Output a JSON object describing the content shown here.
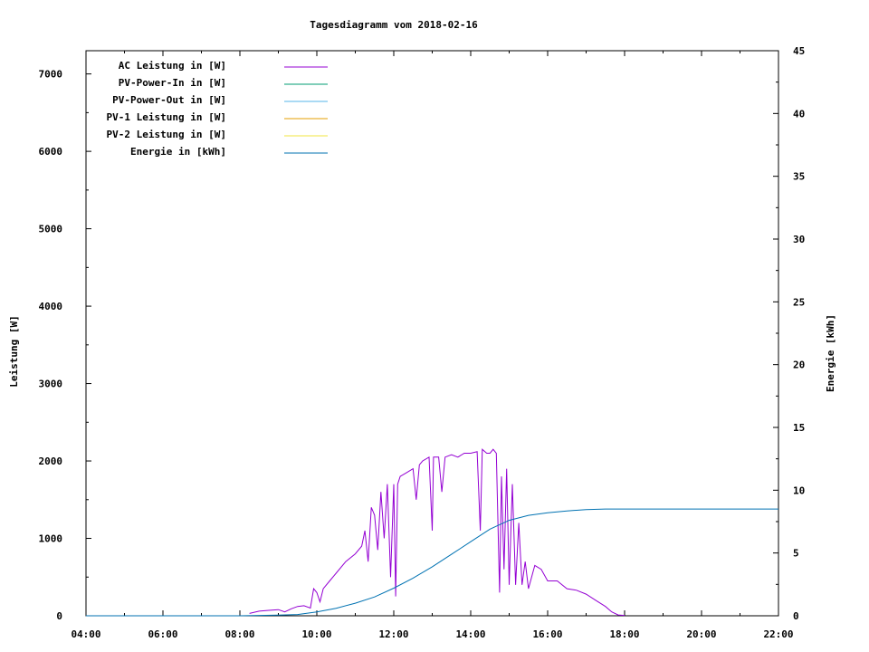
{
  "chart_data": {
    "type": "line",
    "title": "Tagesdiagramm vom 2018-02-16",
    "ylabel": "Leistung [W]",
    "y2label": "Energie [kWh]",
    "xlim": [
      "04:00",
      "22:00"
    ],
    "ylim": [
      0,
      7300
    ],
    "y2lim": [
      0,
      45
    ],
    "xticks": [
      "04:00",
      "06:00",
      "08:00",
      "10:00",
      "12:00",
      "14:00",
      "16:00",
      "18:00",
      "20:00",
      "22:00"
    ],
    "yticks": [
      "0",
      "1000",
      "2000",
      "3000",
      "4000",
      "5000",
      "6000",
      "7000"
    ],
    "y2ticks": [
      "0",
      "5",
      "10",
      "15",
      "20",
      "25",
      "30",
      "35",
      "40",
      "45"
    ],
    "legend_position": "top-left",
    "series": [
      {
        "name": "AC Leistung in [W]",
        "axis": "left",
        "color": "#9400d3",
        "points": [
          [
            "08:15",
            30
          ],
          [
            "08:30",
            60
          ],
          [
            "08:45",
            70
          ],
          [
            "09:00",
            80
          ],
          [
            "09:10",
            50
          ],
          [
            "09:20",
            90
          ],
          [
            "09:30",
            120
          ],
          [
            "09:40",
            130
          ],
          [
            "09:50",
            100
          ],
          [
            "09:55",
            350
          ],
          [
            "10:00",
            300
          ],
          [
            "10:05",
            180
          ],
          [
            "10:10",
            350
          ],
          [
            "10:20",
            450
          ],
          [
            "10:30",
            550
          ],
          [
            "10:45",
            700
          ],
          [
            "11:00",
            800
          ],
          [
            "11:10",
            900
          ],
          [
            "11:15",
            1100
          ],
          [
            "11:20",
            700
          ],
          [
            "11:25",
            1400
          ],
          [
            "11:30",
            1300
          ],
          [
            "11:35",
            850
          ],
          [
            "11:40",
            1600
          ],
          [
            "11:45",
            1000
          ],
          [
            "11:50",
            1700
          ],
          [
            "11:55",
            500
          ],
          [
            "12:00",
            1700
          ],
          [
            "12:03",
            250
          ],
          [
            "12:06",
            1700
          ],
          [
            "12:10",
            1800
          ],
          [
            "12:20",
            1850
          ],
          [
            "12:30",
            1900
          ],
          [
            "12:35",
            1500
          ],
          [
            "12:40",
            1950
          ],
          [
            "12:45",
            2000
          ],
          [
            "12:55",
            2050
          ],
          [
            "13:00",
            1100
          ],
          [
            "13:02",
            2050
          ],
          [
            "13:10",
            2050
          ],
          [
            "13:15",
            1600
          ],
          [
            "13:20",
            2050
          ],
          [
            "13:30",
            2080
          ],
          [
            "13:40",
            2050
          ],
          [
            "13:50",
            2100
          ],
          [
            "14:00",
            2100
          ],
          [
            "14:10",
            2120
          ],
          [
            "14:15",
            1100
          ],
          [
            "14:18",
            2150
          ],
          [
            "14:25",
            2100
          ],
          [
            "14:30",
            2100
          ],
          [
            "14:35",
            2150
          ],
          [
            "14:40",
            2100
          ],
          [
            "14:45",
            300
          ],
          [
            "14:48",
            1800
          ],
          [
            "14:52",
            600
          ],
          [
            "14:56",
            1900
          ],
          [
            "15:00",
            400
          ],
          [
            "15:05",
            1700
          ],
          [
            "15:10",
            400
          ],
          [
            "15:15",
            1200
          ],
          [
            "15:20",
            400
          ],
          [
            "15:25",
            700
          ],
          [
            "15:30",
            350
          ],
          [
            "15:40",
            650
          ],
          [
            "15:50",
            600
          ],
          [
            "16:00",
            450
          ],
          [
            "16:15",
            450
          ],
          [
            "16:30",
            350
          ],
          [
            "16:45",
            330
          ],
          [
            "17:00",
            280
          ],
          [
            "17:15",
            200
          ],
          [
            "17:30",
            120
          ],
          [
            "17:40",
            50
          ],
          [
            "17:50",
            10
          ],
          [
            "18:00",
            5
          ]
        ]
      },
      {
        "name": "PV-Power-In in [W]",
        "axis": "left",
        "color": "#009e73",
        "points": []
      },
      {
        "name": "PV-Power-Out in [W]",
        "axis": "left",
        "color": "#56b4e9",
        "points": []
      },
      {
        "name": "PV-1 Leistung in [W]",
        "axis": "left",
        "color": "#e69f00",
        "points": []
      },
      {
        "name": "PV-2 Leistung in [W]",
        "axis": "left",
        "color": "#f0e442",
        "points": []
      },
      {
        "name": "Energie in [kWh]",
        "axis": "right",
        "color": "#0072b2",
        "points": [
          [
            "04:00",
            0
          ],
          [
            "08:00",
            0
          ],
          [
            "09:00",
            0.05
          ],
          [
            "09:30",
            0.1
          ],
          [
            "10:00",
            0.3
          ],
          [
            "10:30",
            0.6
          ],
          [
            "11:00",
            1.0
          ],
          [
            "11:30",
            1.5
          ],
          [
            "12:00",
            2.2
          ],
          [
            "12:30",
            3.0
          ],
          [
            "13:00",
            3.9
          ],
          [
            "13:30",
            4.9
          ],
          [
            "14:00",
            5.9
          ],
          [
            "14:30",
            6.9
          ],
          [
            "15:00",
            7.6
          ],
          [
            "15:30",
            8.0
          ],
          [
            "16:00",
            8.2
          ],
          [
            "16:30",
            8.35
          ],
          [
            "17:00",
            8.45
          ],
          [
            "17:30",
            8.5
          ],
          [
            "18:00",
            8.5
          ],
          [
            "22:00",
            8.5
          ]
        ]
      }
    ]
  }
}
